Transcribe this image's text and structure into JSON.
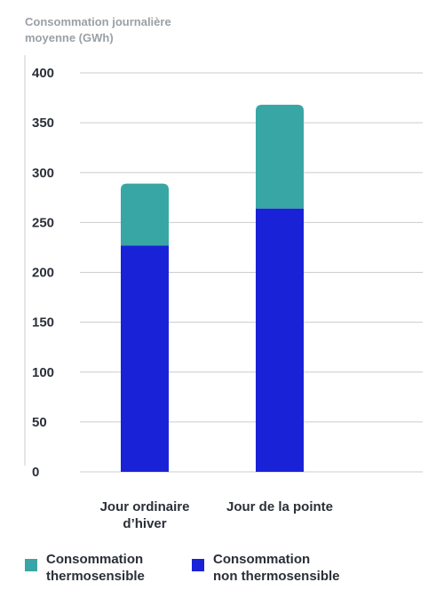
{
  "chart_data": {
    "type": "bar",
    "stacked": true,
    "ylabel": [
      "Consommation journalière",
      "moyenne (GWh)"
    ],
    "ylim": [
      0,
      400
    ],
    "yticks": [
      0,
      50,
      100,
      150,
      200,
      250,
      300,
      350,
      400
    ],
    "grid": true,
    "categories": [
      [
        "Jour ordinaire",
        "d’hiver"
      ],
      [
        "Jour de la pointe"
      ]
    ],
    "series": [
      {
        "name": "Consommation non thermosensible",
        "legend_lines": [
          "Consommation",
          "non thermosensible"
        ],
        "color": "#1a22d8",
        "values": [
          227,
          264
        ]
      },
      {
        "name": "Consommation thermosensible",
        "legend_lines": [
          "Consommation",
          "thermosensible"
        ],
        "color": "#38a6a5",
        "values": [
          62,
          104
        ]
      }
    ],
    "legend_position": "bottom"
  }
}
